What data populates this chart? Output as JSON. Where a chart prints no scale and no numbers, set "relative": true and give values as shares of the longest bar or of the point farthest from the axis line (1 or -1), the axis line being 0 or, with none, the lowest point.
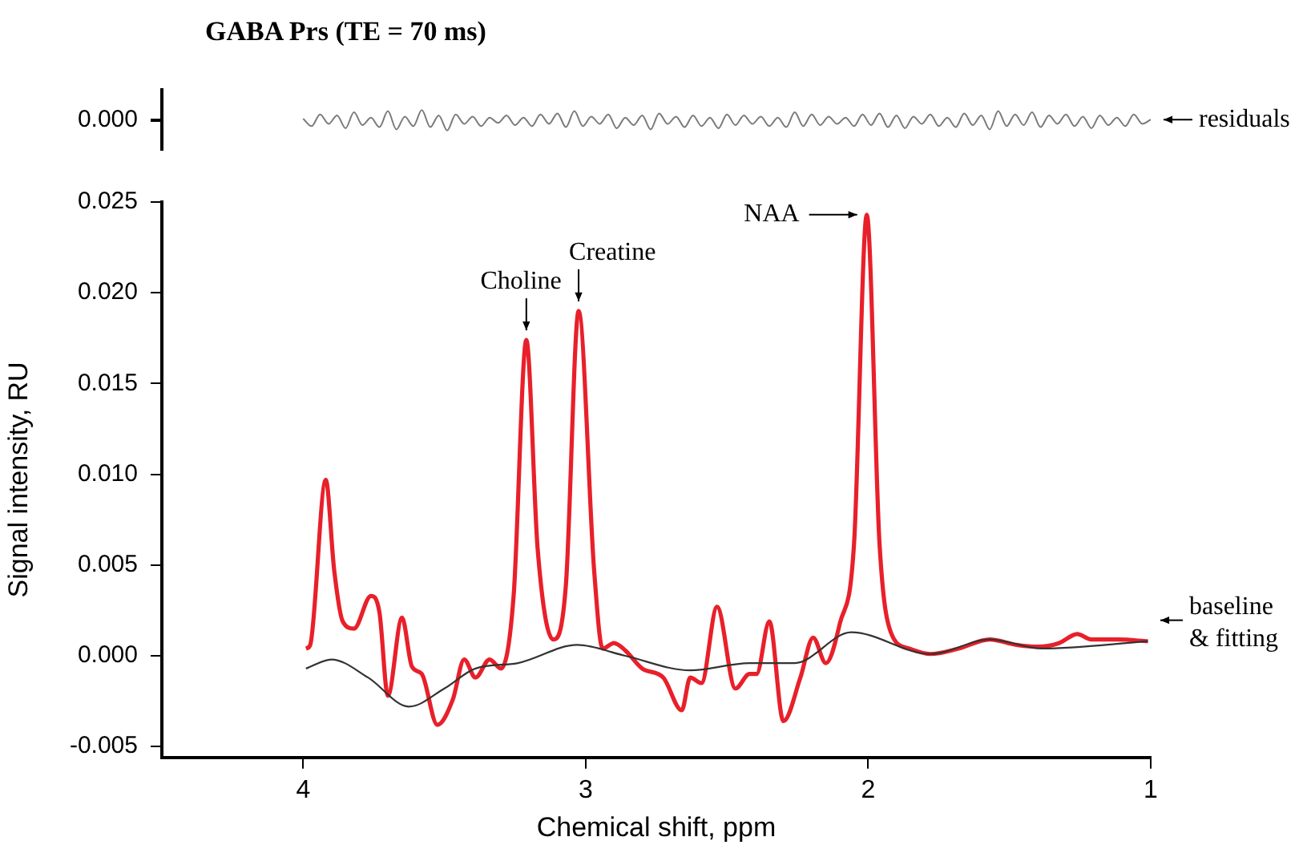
{
  "chart_data": [
    {
      "type": "line",
      "title": "GABA Prs (TE = 70 ms)",
      "relative": true,
      "tick_labels": false,
      "xlim": [
        4.5,
        1
      ],
      "annotations": [
        "0.000"
      ],
      "grid": false,
      "legend": false,
      "marker": "none",
      "series": [
        {
          "name": "residuals",
          "color": "#7a7a7a",
          "x": [
            4.0,
            3.97,
            3.94,
            3.91,
            3.88,
            3.85,
            3.82,
            3.79,
            3.76,
            3.73,
            3.7,
            3.67,
            3.64,
            3.61,
            3.58,
            3.55,
            3.52,
            3.49,
            3.46,
            3.43,
            3.4,
            3.37,
            3.34,
            3.31,
            3.28,
            3.25,
            3.22,
            3.19,
            3.16,
            3.13,
            3.1,
            3.07,
            3.04,
            3.01,
            2.98,
            2.95,
            2.92,
            2.89,
            2.86,
            2.83,
            2.8,
            2.77,
            2.74,
            2.71,
            2.68,
            2.65,
            2.62,
            2.59,
            2.56,
            2.53,
            2.5,
            2.47,
            2.44,
            2.41,
            2.38,
            2.35,
            2.32,
            2.29,
            2.26,
            2.23,
            2.2,
            2.17,
            2.14,
            2.11,
            2.08,
            2.05,
            2.02,
            1.99,
            1.96,
            1.93,
            1.9,
            1.87,
            1.84,
            1.81,
            1.78,
            1.75,
            1.72,
            1.69,
            1.66,
            1.63,
            1.6,
            1.57,
            1.54,
            1.51,
            1.48,
            1.45,
            1.42,
            1.39,
            1.36,
            1.33,
            1.3,
            1.27,
            1.24,
            1.21,
            1.18,
            1.15,
            1.12,
            1.09,
            1.06,
            1.03,
            1.0
          ],
          "values": [
            0.58,
            0.21,
            0.79,
            0.32,
            0.74,
            0.11,
            0.89,
            0.26,
            0.63,
            0.16,
            0.95,
            0.05,
            0.68,
            0.21,
            1.0,
            0.16,
            0.74,
            0.0,
            0.79,
            0.32,
            0.68,
            0.21,
            0.63,
            0.37,
            0.74,
            0.26,
            0.63,
            0.21,
            0.79,
            0.32,
            0.84,
            0.16,
            0.95,
            0.21,
            0.68,
            0.32,
            0.79,
            0.11,
            0.63,
            0.26,
            0.74,
            0.05,
            0.84,
            0.32,
            0.68,
            0.16,
            0.74,
            0.21,
            0.63,
            0.11,
            0.79,
            0.26,
            0.74,
            0.32,
            0.68,
            0.21,
            0.63,
            0.16,
            0.89,
            0.21,
            0.79,
            0.26,
            0.68,
            0.32,
            0.63,
            0.21,
            0.79,
            0.26,
            0.84,
            0.16,
            0.74,
            0.11,
            0.68,
            0.32,
            0.79,
            0.21,
            0.63,
            0.16,
            0.84,
            0.26,
            0.74,
            0.05,
            0.95,
            0.21,
            0.79,
            0.26,
            0.89,
            0.16,
            0.74,
            0.32,
            0.79,
            0.21,
            0.68,
            0.11,
            0.74,
            0.26,
            0.63,
            0.21,
            0.79,
            0.32,
            0.53
          ]
        }
      ]
    },
    {
      "type": "line",
      "xlabel": "Chemical shift, ppm",
      "ylabel": "Signal intensity, RU",
      "xlim": [
        4.5,
        1
      ],
      "xticks": [
        4,
        3,
        2,
        1
      ],
      "ylim": [
        -0.0056,
        0.025
      ],
      "yticks": [
        {
          "value": -0.005,
          "label": "-0.005"
        },
        {
          "value": 0,
          "label": "0.000"
        },
        {
          "value": 0.005,
          "label": "0.005"
        },
        {
          "value": 0.01,
          "label": "0.010"
        },
        {
          "value": 0.015,
          "label": "0.015"
        },
        {
          "value": 0.02,
          "label": "0.020"
        },
        {
          "value": 0.025,
          "label": "0.025"
        }
      ],
      "grid": false,
      "legend": false,
      "marker": "none",
      "annotations": [
        {
          "text": "Choline",
          "x": 3.21,
          "y": 0.0174
        },
        {
          "text": "Creatine",
          "x": 3.025,
          "y": 0.019
        },
        {
          "text": "NAA",
          "x": 2.005,
          "y": 0.0243
        },
        {
          "text": "baseline & fitting",
          "x": 1.0,
          "y": 0.0009
        }
      ],
      "series": [
        {
          "color": "#e8202a",
          "x": [
            3.99,
            3.975,
            3.92,
            3.89,
            3.86,
            3.82,
            3.76,
            3.73,
            3.7,
            3.65,
            3.615,
            3.58,
            3.525,
            3.47,
            3.43,
            3.39,
            3.34,
            3.3,
            3.255,
            3.21,
            3.17,
            3.115,
            3.07,
            3.025,
            2.97,
            2.94,
            2.9,
            2.86,
            2.8,
            2.725,
            2.66,
            2.63,
            2.59,
            2.535,
            2.47,
            2.42,
            2.395,
            2.35,
            2.3,
            2.24,
            2.195,
            2.15,
            2.1,
            2.05,
            2.005,
            1.96,
            1.92,
            1.855,
            1.78,
            1.68,
            1.57,
            1.475,
            1.4,
            1.325,
            1.26,
            1.21,
            1.115,
            1.01
          ],
          "values": [
            0.0004,
            0.0006,
            0.0097,
            0.0047,
            0.0019,
            0.0015,
            0.0033,
            0.0024,
            -0.0022,
            0.0021,
            -0.0006,
            -0.001,
            -0.0038,
            -0.0024,
            -0.0002,
            -0.0012,
            -0.0002,
            -0.0007,
            0.0033,
            0.0174,
            0.0059,
            0.0009,
            0.0039,
            0.019,
            0.0047,
            0.0004,
            0.0007,
            0.0003,
            -0.0007,
            -0.0012,
            -0.003,
            -0.0012,
            -0.0015,
            0.0027,
            -0.0018,
            -0.001,
            -0.001,
            0.0019,
            -0.0036,
            -0.0012,
            0.001,
            -0.0004,
            0.0018,
            0.0062,
            0.0243,
            0.0062,
            0.0013,
            0.0004,
            0.0001,
            0.0004,
            0.0009,
            0.0006,
            0.0005,
            0.0007,
            0.0012,
            0.0009,
            0.0009,
            0.0008
          ]
        },
        {
          "color": "#333333",
          "x": [
            3.99,
            3.9,
            3.77,
            3.625,
            3.5,
            3.39,
            3.24,
            3.03,
            2.86,
            2.63,
            2.42,
            2.26,
            2.06,
            1.78,
            1.57,
            1.385,
            1.01
          ],
          "values": [
            -0.0007,
            -0.0002,
            -0.0012,
            -0.0028,
            -0.0018,
            -0.0007,
            -0.0004,
            0.0006,
            0.0,
            -0.0008,
            -0.0004,
            -0.0004,
            0.0013,
            0.0001,
            0.0009,
            0.0004,
            0.0008
          ]
        }
      ]
    }
  ]
}
